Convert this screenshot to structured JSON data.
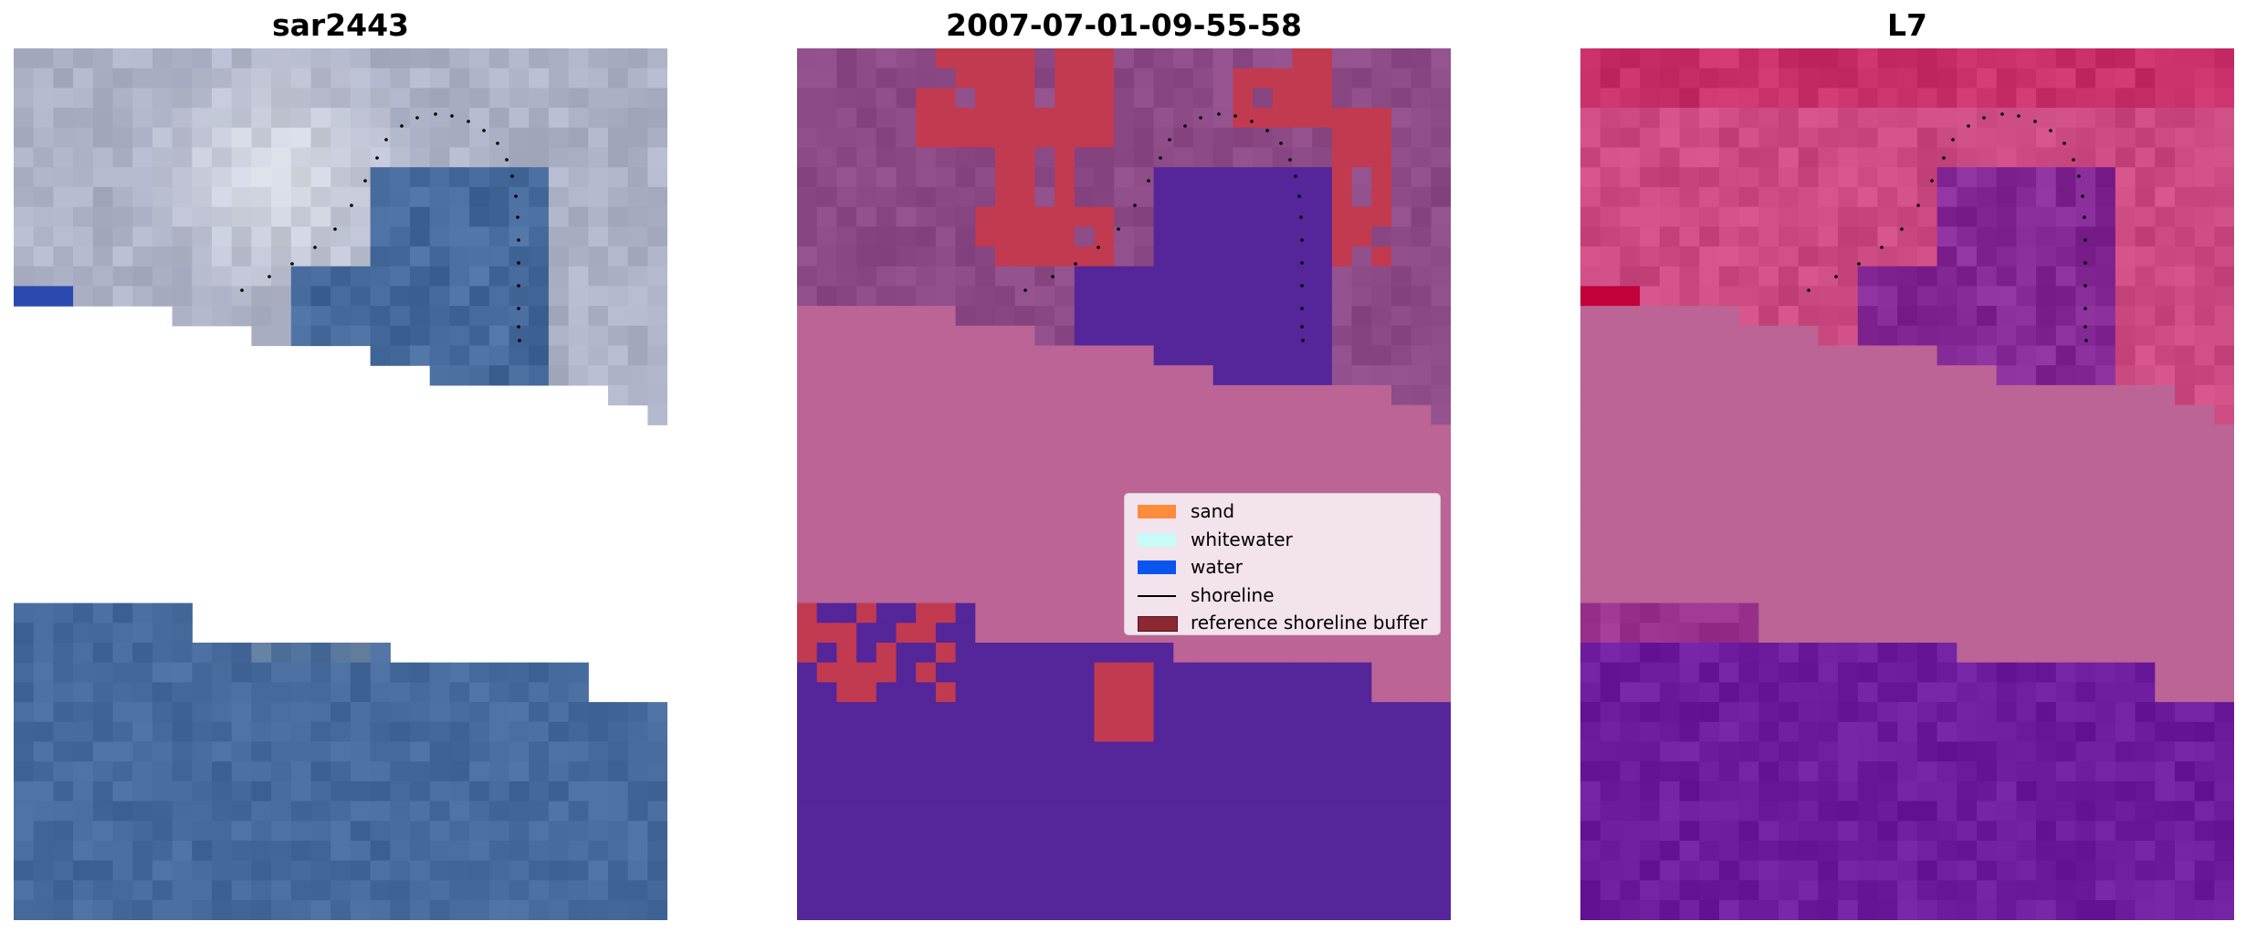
{
  "panels": [
    {
      "title": "sar2443"
    },
    {
      "title": "2007-07-01-09-55-58"
    },
    {
      "title": "L7"
    }
  ],
  "legend": {
    "items": [
      {
        "label": "sand",
        "kind": "patch",
        "color": "#ff8c3c"
      },
      {
        "label": "whitewater",
        "kind": "patch",
        "color": "#c8faf8"
      },
      {
        "label": "water",
        "kind": "patch",
        "color": "#0a55f0"
      },
      {
        "label": "shoreline",
        "kind": "line",
        "color": "#000000"
      },
      {
        "label": "reference shoreline buffer",
        "kind": "patch",
        "color": "#8c2832"
      }
    ]
  },
  "colors": {
    "rgb_land": "#aeb2c6",
    "rgb_sea": "#466a9c",
    "rgb_blue": "#2a4ab0",
    "class_land": "#8c4a86",
    "class_sea": "#55259a",
    "class_nodata": "#bb6495",
    "class_buffer": "#c23a50",
    "index_land": "#cc4a82",
    "index_sea": "#6c1c9c",
    "index_nodata": "#bb6495",
    "index_peak": "#c2003a"
  }
}
